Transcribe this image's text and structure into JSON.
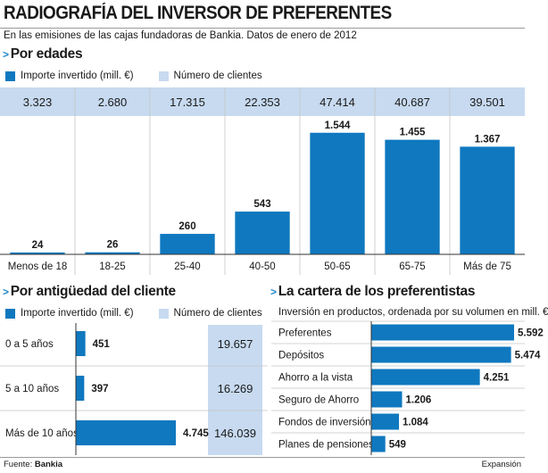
{
  "title": "RADIOGRAFÍA DEL INVERSOR DE PREFERENTES",
  "subtitle": "En las emisiones de las cajas fundadoras de Bankia. Datos de enero de 2012",
  "legend": {
    "invested": "Importe invertido (mill. €)",
    "clients": "Número de clientes"
  },
  "colors": {
    "bar": "#0f78bf",
    "client_band": "#c7daf0",
    "accent": "#1e88c8"
  },
  "chart_data": [
    {
      "type": "bar",
      "title": "Por edades",
      "categories": [
        "Menos de 18",
        "18-25",
        "25-40",
        "40-50",
        "50-65",
        "65-75",
        "Más de 75"
      ],
      "series": [
        {
          "name": "Importe invertido (mill. €)",
          "values": [
            24,
            26,
            260,
            543,
            1544,
            1455,
            1367
          ],
          "labels": [
            "24",
            "26",
            "260",
            "543",
            "1.544",
            "1.455",
            "1.367"
          ]
        },
        {
          "name": "Número de clientes",
          "values": [
            3323,
            2680,
            17315,
            22353,
            47414,
            40687,
            39501
          ],
          "labels": [
            "3.323",
            "2.680",
            "17.315",
            "22.353",
            "47.414",
            "40.687",
            "39.501"
          ]
        }
      ],
      "ylim": [
        0,
        1700
      ]
    },
    {
      "type": "bar",
      "title": "Por antigüedad del cliente",
      "orientation": "horizontal",
      "categories": [
        "0 a 5 años",
        "5 a 10 años",
        "Más de 10 años"
      ],
      "series": [
        {
          "name": "Importe invertido (mill. €)",
          "values": [
            451,
            397,
            4745
          ],
          "labels": [
            "451",
            "397",
            "4.745"
          ]
        },
        {
          "name": "Número de clientes",
          "values": [
            19657,
            16269,
            146039
          ],
          "labels": [
            "19.657",
            "16.269",
            "146.039"
          ]
        }
      ],
      "xlim": [
        0,
        4745
      ]
    },
    {
      "type": "bar",
      "title": "La cartera de los preferentistas",
      "subtitle": "Inversión en productos, ordenada por su volumen en mill. €",
      "orientation": "horizontal",
      "categories": [
        "Preferentes",
        "Depósitos",
        "Ahorro a la vista",
        "Seguro de Ahorro",
        "Fondos de inversión",
        "Planes de pensiones"
      ],
      "values": [
        5592,
        5474,
        4251,
        1206,
        1084,
        549
      ],
      "labels": [
        "5.592",
        "5.474",
        "4.251",
        "1.206",
        "1.084",
        "549"
      ],
      "xlim": [
        0,
        5592
      ]
    }
  ],
  "footer": {
    "source_prefix": "Fuente: ",
    "source_name": "Bankia",
    "brand": "Expansión"
  }
}
